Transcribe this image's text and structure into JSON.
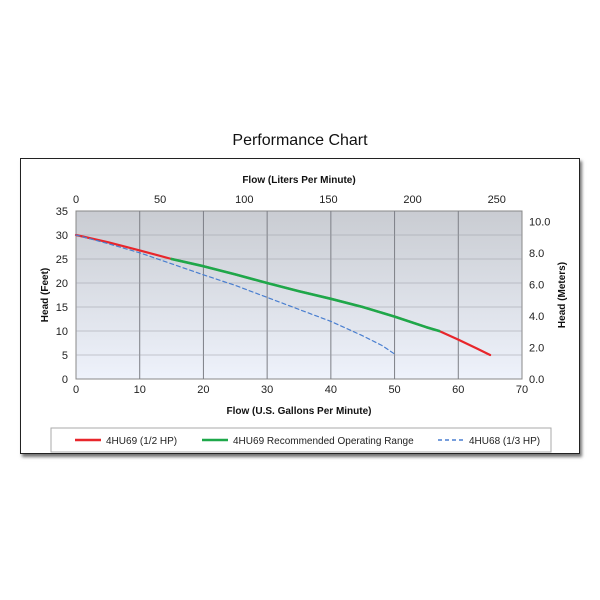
{
  "page": {
    "title": "Performance Chart"
  },
  "chart_data": {
    "type": "line",
    "xlabel": "Flow (U.S. Gallons Per Minute)",
    "x2label": "Flow (Liters Per Minute)",
    "ylabel": "Head (Feet)",
    "y2label": "Head (Meters)",
    "xlim": [
      0,
      70
    ],
    "ylim": [
      0,
      35
    ],
    "x2lim": [
      0,
      265
    ],
    "y2lim": [
      0,
      10.67
    ],
    "xticks": [
      "0",
      "10",
      "20",
      "30",
      "40",
      "50",
      "60",
      "70"
    ],
    "yticks": [
      "0",
      "5",
      "10",
      "15",
      "20",
      "25",
      "30",
      "35"
    ],
    "x2ticks": [
      "0",
      "50",
      "100",
      "150",
      "200",
      "250"
    ],
    "y2ticks": [
      "0.0",
      "2.0",
      "4.0",
      "6.0",
      "8.0",
      "10.0"
    ],
    "grid": true,
    "legend_position": "bottom",
    "series": [
      {
        "name": "4HU69 (1/2 HP)",
        "color": "#e8262b",
        "style": "solid",
        "x": [
          0,
          5,
          10,
          15,
          20,
          25,
          30,
          35,
          40,
          45,
          50,
          55,
          57,
          60,
          63,
          65
        ],
        "y": [
          30,
          28.5,
          26.8,
          25,
          23.5,
          21.8,
          20,
          18.3,
          16.7,
          15,
          13,
          10.8,
          10,
          8.2,
          6.3,
          5
        ]
      },
      {
        "name": "4HU69 Recommended Operating Range",
        "color": "#1ea84a",
        "style": "solid",
        "x": [
          15,
          20,
          25,
          30,
          35,
          40,
          45,
          50,
          55,
          57
        ],
        "y": [
          25,
          23.5,
          21.8,
          20,
          18.3,
          16.7,
          15,
          13,
          10.8,
          10
        ]
      },
      {
        "name": "4HU68 (1/3 HP)",
        "color": "#4a7fd0",
        "style": "dashed",
        "x": [
          0,
          5,
          10,
          15,
          20,
          25,
          30,
          35,
          40,
          45,
          48,
          50
        ],
        "y": [
          30,
          28.2,
          26.3,
          24,
          21.7,
          19.5,
          17,
          14.5,
          12,
          9,
          7,
          5.2
        ]
      }
    ]
  }
}
